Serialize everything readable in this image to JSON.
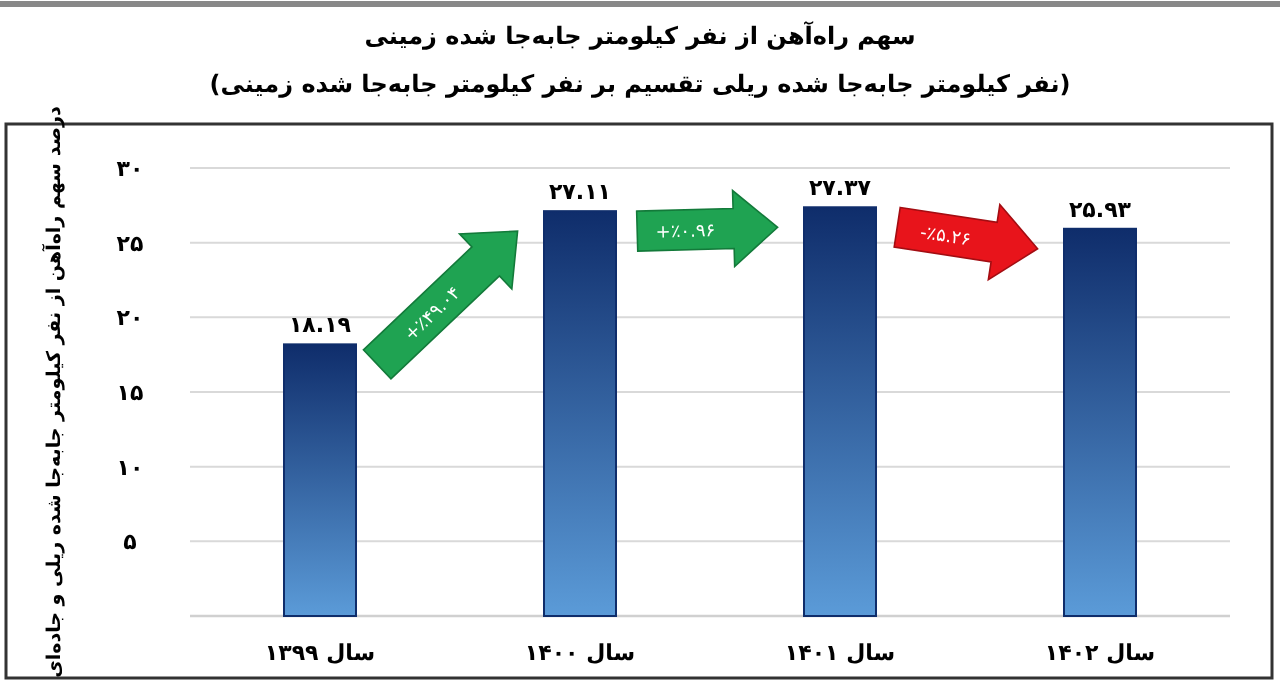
{
  "chart_data": {
    "type": "bar",
    "title": "سهم راه‌آهن از نفر کیلومتر جابه‌جا شده زمینی",
    "subtitle": "(نفر کیلومتر جابه‌جا شده ریلی تقسیم بر نفر کیلومتر جابه‌جا شده زمینی)",
    "ylabel": "درصد سهم راه‌آهن از نفر کیلومتر جابه‌جا شده ریلی و جاده‌ای",
    "categories": [
      "سال ۱۳۹۹",
      "سال ۱۴۰۰",
      "سال ۱۴۰۱",
      "سال ۱۴۰۲"
    ],
    "values": [
      18.19,
      27.11,
      27.37,
      25.93
    ],
    "value_labels": [
      "۱۸.۱۹",
      "۲۷.۱۱",
      "۲۷.۳۷",
      "۲۵.۹۳"
    ],
    "color": "#0f2d6b",
    "ylim": [
      0,
      30
    ],
    "yticks": [
      {
        "value": 5,
        "label": "۵"
      },
      {
        "value": 10,
        "label": "۱۰"
      },
      {
        "value": 15,
        "label": "۱۵"
      },
      {
        "value": 20,
        "label": "۲۰"
      },
      {
        "value": 25,
        "label": "۲۵"
      },
      {
        "value": 30,
        "label": "۳۰"
      }
    ],
    "grid": "y",
    "annotations": [
      "+٪۴۹.۰۴",
      "+٪۰.۹۶",
      "-٪۵.۲۶"
    ]
  }
}
